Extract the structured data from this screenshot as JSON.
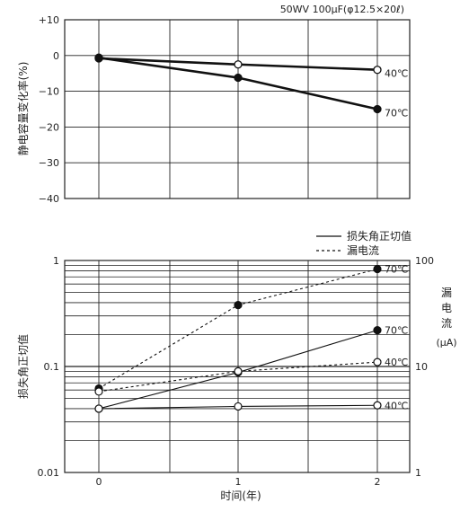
{
  "chart_data": [
    {
      "type": "line",
      "title": "50WV 100μF(φ12.5×20ℓ)",
      "ylabel": "静电容量变化率(%)",
      "xlim": [
        0,
        2
      ],
      "ylim": [
        -40,
        10
      ],
      "y_ticks": [
        {
          "v": 10,
          "label": "+10"
        },
        {
          "v": 0,
          "label": "0"
        },
        {
          "v": -10,
          "label": "−10"
        },
        {
          "v": -20,
          "label": "−20"
        },
        {
          "v": -30,
          "label": "−30"
        },
        {
          "v": -40,
          "label": "−40"
        }
      ],
      "grid": true,
      "series": [
        {
          "name": "40℃",
          "marker": "open",
          "x": [
            0,
            1,
            2
          ],
          "y": [
            -0.8,
            -2.5,
            -4.0
          ]
        },
        {
          "name": "70℃",
          "marker": "filled",
          "x": [
            0,
            1,
            2
          ],
          "y": [
            -0.6,
            -6.2,
            -15.0
          ]
        }
      ]
    },
    {
      "type": "line",
      "xlabel": "时间(年)",
      "ylabel": "损失角正切值",
      "ylabel_right": "漏电流(μA)",
      "yscale": "log",
      "xlim": [
        0,
        2
      ],
      "ylim": [
        0.01,
        1
      ],
      "ylim_right": [
        1,
        100
      ],
      "x_ticks": [
        {
          "v": 0,
          "label": "0"
        },
        {
          "v": 1,
          "label": "1"
        },
        {
          "v": 2,
          "label": "2"
        }
      ],
      "y_ticks": [
        {
          "v": 1,
          "label": "1"
        },
        {
          "v": 0.1,
          "label": "0.1"
        },
        {
          "v": 0.01,
          "label": "0.01"
        }
      ],
      "y_ticks_right": [
        {
          "v": 100,
          "label": "100"
        },
        {
          "v": 10,
          "label": "10"
        },
        {
          "v": 1,
          "label": "1"
        }
      ],
      "grid": true,
      "legend": [
        {
          "label": "损失角正切值",
          "style": "solid"
        },
        {
          "label": "漏电流",
          "style": "dashed"
        }
      ],
      "series": [
        {
          "name": "70℃",
          "quantity": "tanδ",
          "style": "solid",
          "marker": "filled",
          "x": [
            0,
            1,
            2
          ],
          "y": [
            0.04,
            0.088,
            0.22
          ]
        },
        {
          "name": "40℃",
          "quantity": "tanδ",
          "style": "solid",
          "marker": "open",
          "x": [
            0,
            1,
            2
          ],
          "y": [
            0.04,
            0.042,
            0.043
          ]
        },
        {
          "name": "70℃",
          "quantity": "leakage",
          "axis": "right",
          "style": "dashed",
          "marker": "filled",
          "x": [
            0,
            1,
            2
          ],
          "y": [
            6.2,
            38,
            83
          ]
        },
        {
          "name": "40℃",
          "quantity": "leakage",
          "axis": "right",
          "style": "dashed",
          "marker": "open",
          "x": [
            0,
            1,
            2
          ],
          "y": [
            5.8,
            9.0,
            11.0
          ]
        }
      ]
    }
  ]
}
